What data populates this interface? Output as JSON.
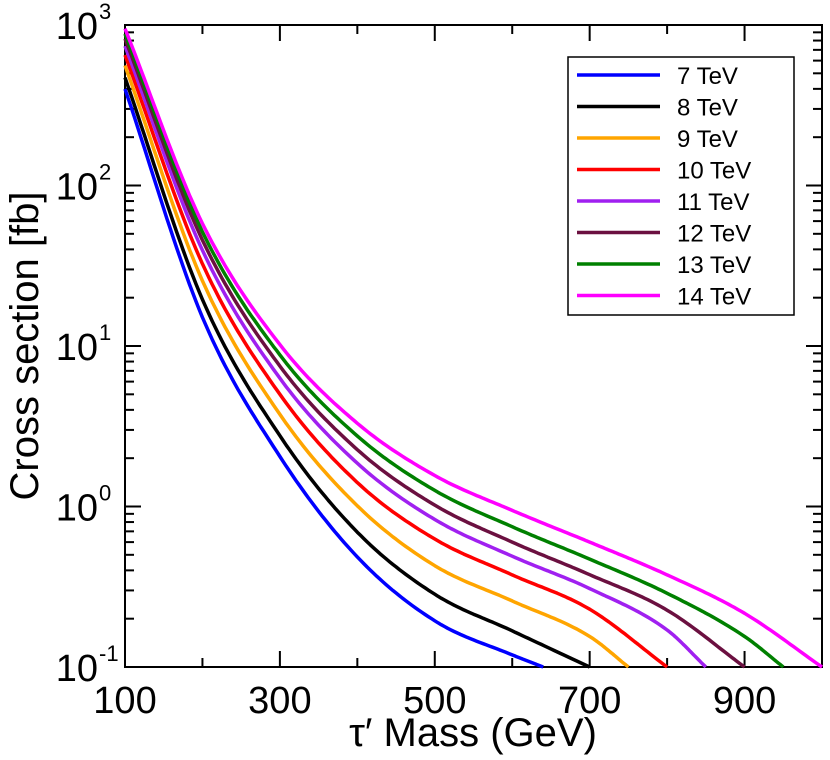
{
  "chart_data": {
    "type": "line",
    "xlabel": "τ′ Mass  (GeV)",
    "ylabel": "Cross section  [fb]",
    "x_scale": "linear",
    "y_scale": "log",
    "xlim": [
      100,
      1000
    ],
    "ylim": [
      0.1,
      1000
    ],
    "x_tick_labels": [
      "100",
      "300",
      "500",
      "700",
      "900"
    ],
    "x_tick_values": [
      100,
      300,
      500,
      700,
      900
    ],
    "x_minor_tick_values": [
      200,
      400,
      600,
      800
    ],
    "y_tick_values": [
      0.1,
      1,
      10,
      100,
      1000
    ],
    "y_tick_base": "10",
    "y_tick_exponents": [
      "-1",
      "0",
      "1",
      "2",
      "3"
    ],
    "legend_position": "top-right",
    "series": [
      {
        "name": "7 TeV",
        "color": "#0000ff",
        "x": [
          100,
          200,
          300,
          400,
          500,
          600,
          640
        ],
        "y": [
          400,
          15.1,
          2.05,
          0.485,
          0.194,
          0.119,
          0.1
        ]
      },
      {
        "name": "8 TeV",
        "color": "#000000",
        "x": [
          100,
          200,
          300,
          400,
          500,
          600,
          700
        ],
        "y": [
          470,
          19.5,
          2.76,
          0.692,
          0.284,
          0.168,
          0.1
        ]
      },
      {
        "name": "9 TeV",
        "color": "#ffa500",
        "x": [
          100,
          200,
          300,
          400,
          500,
          600,
          700,
          750
        ],
        "y": [
          560,
          25.5,
          3.75,
          1.01,
          0.428,
          0.258,
          0.155,
          0.1
        ]
      },
      {
        "name": "10 TeV",
        "color": "#ff0000",
        "x": [
          100,
          200,
          300,
          400,
          500,
          600,
          700,
          800
        ],
        "y": [
          650,
          32.5,
          5.0,
          1.41,
          0.627,
          0.375,
          0.229,
          0.1
        ]
      },
      {
        "name": "11 TeV",
        "color": "#a020f0",
        "x": [
          100,
          200,
          300,
          400,
          500,
          600,
          700,
          800,
          850
        ],
        "y": [
          740,
          39.5,
          6.3,
          1.86,
          0.83,
          0.49,
          0.308,
          0.17,
          0.1
        ]
      },
      {
        "name": "12 TeV",
        "color": "#6b1040",
        "x": [
          100,
          200,
          300,
          400,
          500,
          600,
          700,
          800,
          900
        ],
        "y": [
          820,
          45.7,
          7.5,
          2.26,
          1.02,
          0.6,
          0.376,
          0.226,
          0.1
        ]
      },
      {
        "name": "13 TeV",
        "color": "#008000",
        "x": [
          100,
          200,
          300,
          400,
          500,
          600,
          700,
          800,
          900,
          950
        ],
        "y": [
          880,
          51.5,
          8.8,
          2.75,
          1.26,
          0.748,
          0.47,
          0.288,
          0.155,
          0.1
        ]
      },
      {
        "name": "14 TeV",
        "color": "#ff00ff",
        "x": [
          100,
          200,
          300,
          400,
          500,
          600,
          700,
          800,
          900,
          1000
        ],
        "y": [
          950,
          58,
          10.2,
          3.3,
          1.56,
          0.946,
          0.6,
          0.375,
          0.216,
          0.1
        ]
      }
    ]
  }
}
